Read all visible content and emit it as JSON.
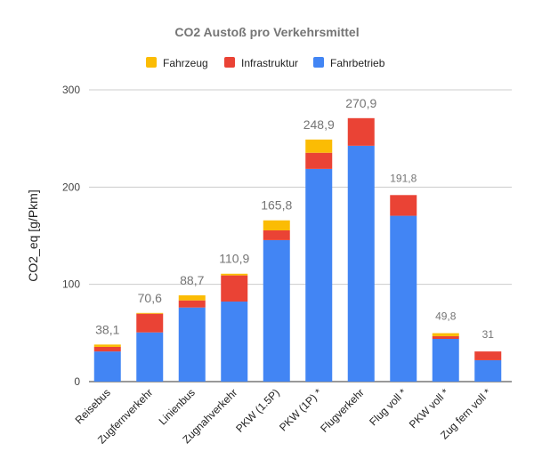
{
  "chart_data": {
    "type": "bar",
    "stacked": true,
    "title": "CO2 Austoß pro Verkehrsmittel",
    "xlabel": "",
    "ylabel": "CO2_eq [g/Pkm]",
    "ylim": [
      0,
      300
    ],
    "yticks": [
      "0",
      "100",
      "200",
      "300"
    ],
    "grid": true,
    "legend_position": "top",
    "categories": [
      "Reisebus",
      "Zugfernverkehr",
      "Linienbus",
      "Zugnahverkehr",
      "PKW (1.5P)",
      "PKW (1P) *",
      "Flugverkehr",
      "Flug voll *",
      "PKW voll *",
      "Zug fern voll *"
    ],
    "series": [
      {
        "name": "Fahrbetrieb",
        "color": "#4285f4",
        "values": [
          31.0,
          50.6,
          76.2,
          82.3,
          145.5,
          218.7,
          242.5,
          170.5,
          43.9,
          22.0
        ]
      },
      {
        "name": "Infrastruktur",
        "color": "#ea4335",
        "values": [
          4.7,
          19.2,
          7.3,
          26.9,
          10.0,
          16.6,
          28.4,
          21.3,
          2.8,
          9.0
        ]
      },
      {
        "name": "Fahrzeug",
        "color": "#fbbc04",
        "values": [
          2.4,
          0.8,
          5.2,
          1.7,
          10.3,
          13.6,
          0,
          0,
          3.1,
          0
        ]
      }
    ],
    "legend_order": [
      "Fahrzeug",
      "Infrastruktur",
      "Fahrbetrieb"
    ],
    "total_labels": [
      "38,1",
      "70,6",
      "88,7",
      "110,9",
      "165,8",
      "248,9",
      "270,9",
      "191,8",
      "49,8",
      "31"
    ]
  }
}
